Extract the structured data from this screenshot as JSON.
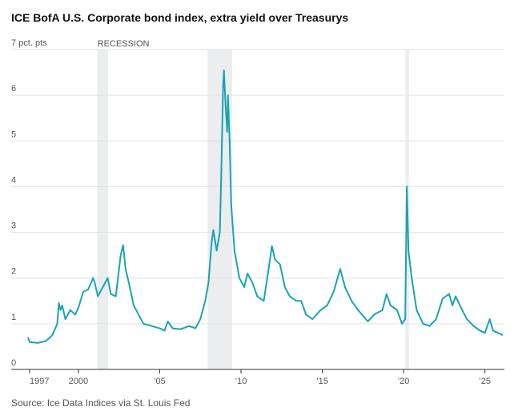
{
  "chart_data": {
    "type": "line",
    "title": "ICE BofA U.S. Corporate bond index, extra yield over Treasurys",
    "source": "Source: Ice Data Indices via St. Louis Fed",
    "recession_label": "RECESSION",
    "recessions": [
      [
        2001.17,
        2001.83
      ],
      [
        2007.95,
        2009.45
      ],
      [
        2020.12,
        2020.33
      ]
    ],
    "x": [
      1996.9,
      1997.0,
      1997.5,
      1998.0,
      1998.4,
      1998.7,
      1998.8,
      1998.9,
      1999.0,
      1999.2,
      1999.5,
      1999.8,
      2000.0,
      2000.3,
      2000.6,
      2000.9,
      2001.0,
      2001.2,
      2001.5,
      2001.8,
      2002.0,
      2002.3,
      2002.6,
      2002.75,
      2002.9,
      2003.1,
      2003.4,
      2003.7,
      2004.0,
      2004.5,
      2005.0,
      2005.3,
      2005.5,
      2005.8,
      2006.3,
      2006.8,
      2007.2,
      2007.5,
      2007.8,
      2008.0,
      2008.2,
      2008.3,
      2008.5,
      2008.7,
      2008.8,
      2008.9,
      2008.95,
      2009.05,
      2009.15,
      2009.2,
      2009.3,
      2009.4,
      2009.6,
      2009.9,
      2010.2,
      2010.4,
      2010.7,
      2011.0,
      2011.4,
      2011.7,
      2011.9,
      2012.1,
      2012.4,
      2012.7,
      2013.0,
      2013.4,
      2013.7,
      2014.0,
      2014.4,
      2014.9,
      2015.3,
      2015.7,
      2016.1,
      2016.4,
      2016.8,
      2017.2,
      2017.8,
      2018.2,
      2018.7,
      2018.95,
      2019.2,
      2019.6,
      2019.9,
      2020.1,
      2020.2,
      2020.3,
      2020.5,
      2020.8,
      2021.2,
      2021.6,
      2022.0,
      2022.4,
      2022.6,
      2022.8,
      2023.0,
      2023.2,
      2023.6,
      2023.9,
      2024.3,
      2024.7,
      2025.0,
      2025.3,
      2025.5,
      2025.8,
      2026.1
    ],
    "series": [
      {
        "color": "#1aa3b5",
        "values": [
          0.7,
          0.6,
          0.58,
          0.62,
          0.75,
          1.0,
          1.45,
          1.3,
          1.4,
          1.1,
          1.3,
          1.2,
          1.35,
          1.7,
          1.75,
          2.0,
          1.9,
          1.6,
          1.8,
          2.0,
          1.65,
          1.6,
          2.5,
          2.72,
          2.2,
          1.9,
          1.4,
          1.2,
          1.0,
          0.95,
          0.9,
          0.85,
          1.05,
          0.9,
          0.88,
          0.95,
          0.9,
          1.1,
          1.5,
          1.9,
          2.8,
          3.05,
          2.6,
          3.0,
          4.5,
          6.2,
          6.55,
          5.8,
          5.2,
          6.0,
          5.0,
          3.6,
          2.6,
          2.0,
          1.8,
          2.1,
          1.9,
          1.6,
          1.5,
          2.2,
          2.7,
          2.4,
          2.3,
          1.8,
          1.6,
          1.5,
          1.5,
          1.2,
          1.1,
          1.3,
          1.4,
          1.7,
          2.2,
          1.8,
          1.5,
          1.3,
          1.05,
          1.2,
          1.3,
          1.65,
          1.4,
          1.3,
          1.0,
          1.1,
          4.0,
          2.6,
          2.0,
          1.3,
          1.0,
          0.95,
          1.1,
          1.55,
          1.6,
          1.65,
          1.4,
          1.6,
          1.3,
          1.1,
          0.95,
          0.85,
          0.8,
          1.1,
          0.85,
          0.8,
          0.75
        ]
      }
    ],
    "xlim": [
      1997,
      2026.2
    ],
    "xticks": [
      {
        "value": 1997,
        "label": "1997"
      },
      {
        "value": 2000,
        "label": "2000"
      },
      {
        "value": 2005,
        "label": "’05"
      },
      {
        "value": 2010,
        "label": "’10"
      },
      {
        "value": 2015,
        "label": "’15"
      },
      {
        "value": 2020,
        "label": "’20"
      },
      {
        "value": 2025,
        "label": "’25"
      }
    ],
    "ylim": [
      0,
      7
    ],
    "yticks": [
      0,
      1,
      2,
      3,
      4,
      5,
      6,
      {
        "value": 7,
        "label": "7 pct. pts"
      }
    ],
    "grid": true
  }
}
